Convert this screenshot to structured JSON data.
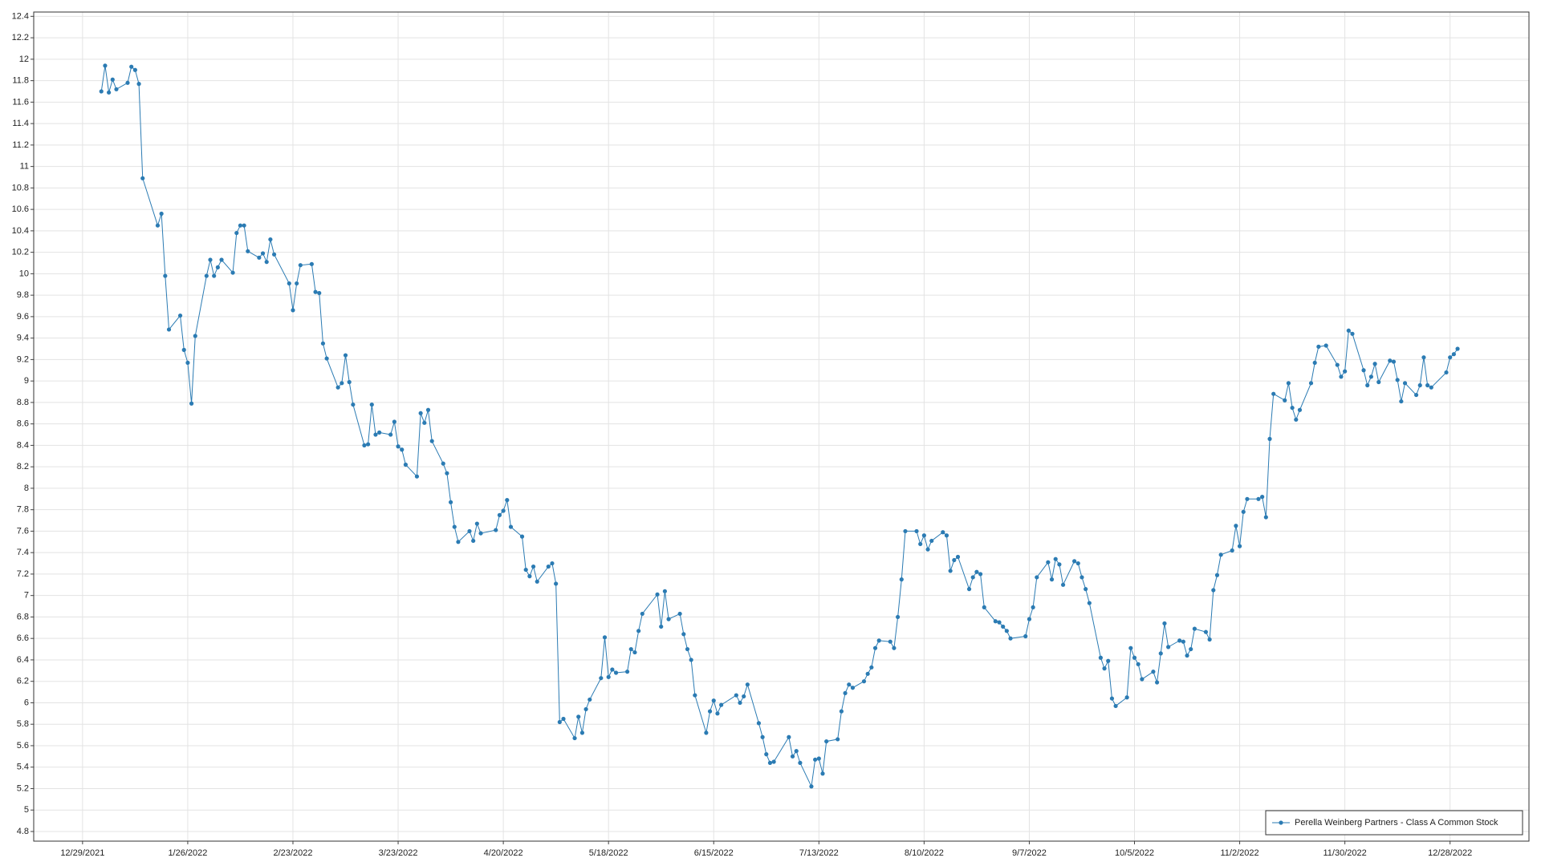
{
  "chart_data": {
    "type": "line",
    "xlim": [
      "12/16/2021",
      "1/18/2023"
    ],
    "xticks": [
      "12/29/2021",
      "1/26/2022",
      "2/23/2022",
      "3/23/2022",
      "4/20/2022",
      "5/18/2022",
      "6/15/2022",
      "7/13/2022",
      "8/10/2022",
      "9/7/2022",
      "10/5/2022",
      "11/2/2022",
      "11/30/2022",
      "12/28/2022"
    ],
    "ylim": [
      4.71,
      12.44
    ],
    "yticks": [
      4.8,
      5,
      5.2,
      5.4,
      5.6,
      5.8,
      6,
      6.2,
      6.4,
      6.6,
      6.8,
      7,
      7.2,
      7.4,
      7.6,
      7.8,
      8,
      8.2,
      8.4,
      8.6,
      8.8,
      9,
      9.2,
      9.4,
      9.6,
      9.8,
      10,
      10.2,
      10.4,
      10.6,
      10.8,
      11,
      11.2,
      11.4,
      11.6,
      11.8,
      12,
      12.2,
      12.4
    ],
    "grid": true,
    "legend": "lower right",
    "x": [
      "1/3/2022",
      "1/4/2022",
      "1/5/2022",
      "1/6/2022",
      "1/7/2022",
      "1/10/2022",
      "1/11/2022",
      "1/12/2022",
      "1/13/2022",
      "1/14/2022",
      "1/18/2022",
      "1/19/2022",
      "1/20/2022",
      "1/21/2022",
      "1/24/2022",
      "1/25/2022",
      "1/26/2022",
      "1/27/2022",
      "1/28/2022",
      "1/31/2022",
      "2/1/2022",
      "2/2/2022",
      "2/3/2022",
      "2/4/2022",
      "2/7/2022",
      "2/8/2022",
      "2/9/2022",
      "2/10/2022",
      "2/11/2022",
      "2/14/2022",
      "2/15/2022",
      "2/16/2022",
      "2/17/2022",
      "2/18/2022",
      "2/22/2022",
      "2/23/2022",
      "2/24/2022",
      "2/25/2022",
      "2/28/2022",
      "3/1/2022",
      "3/2/2022",
      "3/3/2022",
      "3/4/2022",
      "3/7/2022",
      "3/8/2022",
      "3/9/2022",
      "3/10/2022",
      "3/11/2022",
      "3/14/2022",
      "3/15/2022",
      "3/16/2022",
      "3/17/2022",
      "3/18/2022",
      "3/21/2022",
      "3/22/2022",
      "3/23/2022",
      "3/24/2022",
      "3/25/2022",
      "3/28/2022",
      "3/29/2022",
      "3/30/2022",
      "3/31/2022",
      "4/1/2022",
      "4/4/2022",
      "4/5/2022",
      "4/6/2022",
      "4/7/2022",
      "4/8/2022",
      "4/11/2022",
      "4/12/2022",
      "4/13/2022",
      "4/14/2022",
      "4/18/2022",
      "4/19/2022",
      "4/20/2022",
      "4/21/2022",
      "4/22/2022",
      "4/25/2022",
      "4/26/2022",
      "4/27/2022",
      "4/28/2022",
      "4/29/2022",
      "5/2/2022",
      "5/3/2022",
      "5/4/2022",
      "5/5/2022",
      "5/6/2022",
      "5/9/2022",
      "5/10/2022",
      "5/11/2022",
      "5/12/2022",
      "5/13/2022",
      "5/16/2022",
      "5/17/2022",
      "5/18/2022",
      "5/19/2022",
      "5/20/2022",
      "5/23/2022",
      "5/24/2022",
      "5/25/2022",
      "5/26/2022",
      "5/27/2022",
      "5/31/2022",
      "6/1/2022",
      "6/2/2022",
      "6/3/2022",
      "6/6/2022",
      "6/7/2022",
      "6/8/2022",
      "6/9/2022",
      "6/10/2022",
      "6/13/2022",
      "6/14/2022",
      "6/15/2022",
      "6/16/2022",
      "6/17/2022",
      "6/21/2022",
      "6/22/2022",
      "6/23/2022",
      "6/24/2022",
      "6/27/2022",
      "6/28/2022",
      "6/29/2022",
      "6/30/2022",
      "7/1/2022",
      "7/5/2022",
      "7/6/2022",
      "7/7/2022",
      "7/8/2022",
      "7/11/2022",
      "7/12/2022",
      "7/13/2022",
      "7/14/2022",
      "7/15/2022",
      "7/18/2022",
      "7/19/2022",
      "7/20/2022",
      "7/21/2022",
      "7/22/2022",
      "7/25/2022",
      "7/26/2022",
      "7/27/2022",
      "7/28/2022",
      "7/29/2022",
      "8/1/2022",
      "8/2/2022",
      "8/3/2022",
      "8/4/2022",
      "8/5/2022",
      "8/8/2022",
      "8/9/2022",
      "8/10/2022",
      "8/11/2022",
      "8/12/2022",
      "8/15/2022",
      "8/16/2022",
      "8/17/2022",
      "8/18/2022",
      "8/19/2022",
      "8/22/2022",
      "8/23/2022",
      "8/24/2022",
      "8/25/2022",
      "8/26/2022",
      "8/29/2022",
      "8/30/2022",
      "8/31/2022",
      "9/1/2022",
      "9/2/2022",
      "9/6/2022",
      "9/7/2022",
      "9/8/2022",
      "9/9/2022",
      "9/12/2022",
      "9/13/2022",
      "9/14/2022",
      "9/15/2022",
      "9/16/2022",
      "9/19/2022",
      "9/20/2022",
      "9/21/2022",
      "9/22/2022",
      "9/23/2022",
      "9/26/2022",
      "9/27/2022",
      "9/28/2022",
      "9/29/2022",
      "9/30/2022",
      "10/3/2022",
      "10/4/2022",
      "10/5/2022",
      "10/6/2022",
      "10/7/2022",
      "10/10/2022",
      "10/11/2022",
      "10/12/2022",
      "10/13/2022",
      "10/14/2022",
      "10/17/2022",
      "10/18/2022",
      "10/19/2022",
      "10/20/2022",
      "10/21/2022",
      "10/24/2022",
      "10/25/2022",
      "10/26/2022",
      "10/27/2022",
      "10/28/2022",
      "10/31/2022",
      "11/1/2022",
      "11/2/2022",
      "11/3/2022",
      "11/4/2022",
      "11/7/2022",
      "11/8/2022",
      "11/9/2022",
      "11/10/2022",
      "11/11/2022",
      "11/14/2022",
      "11/15/2022",
      "11/16/2022",
      "11/17/2022",
      "11/18/2022",
      "11/21/2022",
      "11/22/2022",
      "11/23/2022",
      "11/25/2022",
      "11/28/2022",
      "11/29/2022",
      "11/30/2022",
      "12/1/2022",
      "12/2/2022",
      "12/5/2022",
      "12/6/2022",
      "12/7/2022",
      "12/8/2022",
      "12/9/2022",
      "12/12/2022",
      "12/13/2022",
      "12/14/2022",
      "12/15/2022",
      "12/16/2022",
      "12/19/2022",
      "12/20/2022",
      "12/21/2022",
      "12/22/2022",
      "12/23/2022",
      "12/27/2022",
      "12/28/2022",
      "12/29/2022",
      "12/30/2022"
    ],
    "series": [
      {
        "name": "Perella Weinberg Partners - Class A Common Stock",
        "color": "#2b7bb3",
        "values": [
          11.7,
          11.94,
          11.69,
          11.81,
          11.72,
          11.78,
          11.93,
          11.9,
          11.77,
          10.89,
          10.45,
          10.56,
          9.98,
          9.48,
          9.61,
          9.29,
          9.17,
          8.79,
          9.42,
          9.98,
          10.13,
          9.98,
          10.06,
          10.13,
          10.01,
          10.38,
          10.45,
          10.45,
          10.21,
          10.15,
          10.19,
          10.11,
          10.32,
          10.18,
          9.91,
          9.66,
          9.91,
          10.08,
          10.09,
          9.83,
          9.82,
          9.35,
          9.21,
          8.94,
          8.98,
          9.24,
          8.99,
          8.78,
          8.4,
          8.41,
          8.78,
          8.5,
          8.52,
          8.5,
          8.62,
          8.39,
          8.36,
          8.22,
          8.11,
          8.7,
          8.61,
          8.73,
          8.44,
          8.23,
          8.14,
          7.87,
          7.64,
          7.5,
          7.6,
          7.51,
          7.67,
          7.58,
          7.61,
          7.75,
          7.79,
          7.89,
          7.64,
          7.55,
          7.24,
          7.18,
          7.27,
          7.13,
          7.27,
          7.3,
          7.11,
          5.82,
          5.85,
          5.67,
          5.87,
          5.72,
          5.94,
          6.03,
          6.23,
          6.61,
          6.24,
          6.31,
          6.28,
          6.29,
          6.5,
          6.47,
          6.67,
          6.83,
          7.01,
          6.71,
          7.04,
          6.78,
          6.83,
          6.64,
          6.5,
          6.4,
          6.07,
          5.72,
          5.92,
          6.02,
          5.9,
          5.98,
          6.07,
          6.0,
          6.06,
          6.17,
          5.81,
          5.68,
          5.52,
          5.44,
          5.45,
          5.68,
          5.5,
          5.55,
          5.44,
          5.22,
          5.47,
          5.48,
          5.34,
          5.64,
          5.66,
          5.92,
          6.09,
          6.17,
          6.14,
          6.2,
          6.27,
          6.33,
          6.51,
          6.58,
          6.57,
          6.51,
          6.8,
          7.15,
          7.6,
          7.6,
          7.48,
          7.56,
          7.43,
          7.51,
          7.59,
          7.56,
          7.23,
          7.33,
          7.36,
          7.06,
          7.17,
          7.22,
          7.2,
          6.89,
          6.76,
          6.75,
          6.71,
          6.67,
          6.6,
          6.62,
          6.78,
          6.89,
          7.17,
          7.31,
          7.15,
          7.34,
          7.29,
          7.1,
          7.32,
          7.3,
          7.17,
          7.06,
          6.93,
          6.42,
          6.32,
          6.39,
          6.04,
          5.97,
          6.05,
          6.51,
          6.42,
          6.36,
          6.22,
          6.29,
          6.19,
          6.46,
          6.74,
          6.52,
          6.58,
          6.57,
          6.44,
          6.5,
          6.69,
          6.66,
          6.59,
          7.05,
          7.19,
          7.38,
          7.42,
          7.65,
          7.46,
          7.78,
          7.9,
          7.9,
          7.92,
          7.73,
          8.46,
          8.88,
          8.82,
          8.98,
          8.75,
          8.64,
          8.73,
          8.98,
          9.17,
          9.32,
          9.33,
          9.15,
          9.04,
          9.09,
          9.47,
          9.44,
          9.1,
          8.96,
          9.04,
          9.16,
          8.99,
          9.19,
          9.18,
          9.01,
          8.81,
          8.98,
          8.87,
          8.96,
          9.22,
          8.96,
          8.94,
          9.08,
          9.22,
          9.25,
          9.3
        ]
      }
    ]
  }
}
